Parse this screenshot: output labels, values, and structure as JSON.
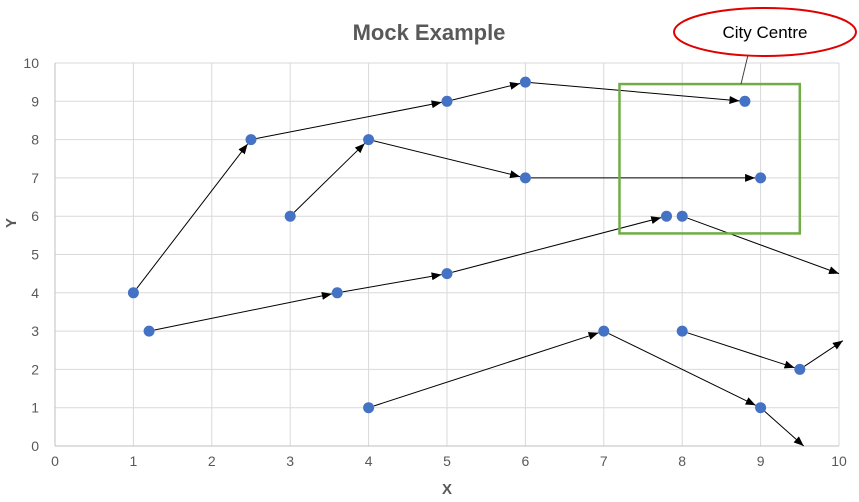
{
  "colors": {
    "point": "#4472C4",
    "arrow": "#000000",
    "grid": "#D9D9D9",
    "axis": "#BFBFBF",
    "text": "#595959",
    "region_border": "#70AD47",
    "callout_border": "#E00000"
  },
  "chart_data": {
    "type": "scatter",
    "title": "Mock Example",
    "xlabel": "X",
    "ylabel": "Y",
    "xlim": [
      0,
      10
    ],
    "ylim": [
      0,
      10
    ],
    "x_ticks": [
      "0",
      "1",
      "2",
      "3",
      "4",
      "5",
      "6",
      "7",
      "8",
      "9",
      "10"
    ],
    "y_ticks": [
      "0",
      "1",
      "2",
      "3",
      "4",
      "5",
      "6",
      "7",
      "8",
      "9",
      "10"
    ],
    "grid": true,
    "points": [
      {
        "x": 1,
        "y": 4
      },
      {
        "x": 2.5,
        "y": 8
      },
      {
        "x": 5,
        "y": 9
      },
      {
        "x": 6,
        "y": 9.5
      },
      {
        "x": 8.8,
        "y": 9
      },
      {
        "x": 3,
        "y": 6
      },
      {
        "x": 4,
        "y": 8
      },
      {
        "x": 6,
        "y": 7
      },
      {
        "x": 9,
        "y": 7
      },
      {
        "x": 1.2,
        "y": 3
      },
      {
        "x": 3.6,
        "y": 4
      },
      {
        "x": 5,
        "y": 4.5
      },
      {
        "x": 7.8,
        "y": 6
      },
      {
        "x": 8,
        "y": 6
      },
      {
        "x": 4,
        "y": 1
      },
      {
        "x": 7,
        "y": 3
      },
      {
        "x": 9,
        "y": 1
      },
      {
        "x": 8,
        "y": 3
      },
      {
        "x": 9.5,
        "y": 2
      }
    ],
    "arrows": [
      {
        "from": [
          1,
          4
        ],
        "to": [
          2.5,
          8
        ]
      },
      {
        "from": [
          2.5,
          8
        ],
        "to": [
          5,
          9
        ]
      },
      {
        "from": [
          5,
          9
        ],
        "to": [
          6,
          9.5
        ]
      },
      {
        "from": [
          6,
          9.5
        ],
        "to": [
          8.8,
          9
        ]
      },
      {
        "from": [
          3,
          6
        ],
        "to": [
          4,
          8
        ]
      },
      {
        "from": [
          4,
          8
        ],
        "to": [
          6,
          7
        ]
      },
      {
        "from": [
          6,
          7
        ],
        "to": [
          9,
          7
        ]
      },
      {
        "from": [
          1.2,
          3
        ],
        "to": [
          3.6,
          4
        ]
      },
      {
        "from": [
          3.6,
          4
        ],
        "to": [
          5,
          4.5
        ]
      },
      {
        "from": [
          5,
          4.5
        ],
        "to": [
          7.8,
          6
        ]
      },
      {
        "from": [
          8,
          6
        ],
        "to": [
          10,
          4.5
        ]
      },
      {
        "from": [
          4,
          1
        ],
        "to": [
          7,
          3
        ]
      },
      {
        "from": [
          7,
          3
        ],
        "to": [
          9,
          1
        ]
      },
      {
        "from": [
          9,
          1
        ],
        "to": [
          9.55,
          0
        ]
      },
      {
        "from": [
          8,
          3
        ],
        "to": [
          9.5,
          2
        ]
      },
      {
        "from": [
          9.5,
          2
        ],
        "to": [
          10.05,
          2.75
        ]
      }
    ],
    "region": {
      "x0": 7.2,
      "x1": 9.5,
      "y0": 5.55,
      "y1": 9.45
    },
    "callout": {
      "text": "City Centre",
      "anchor": [
        8.75,
        9.45
      ]
    }
  }
}
